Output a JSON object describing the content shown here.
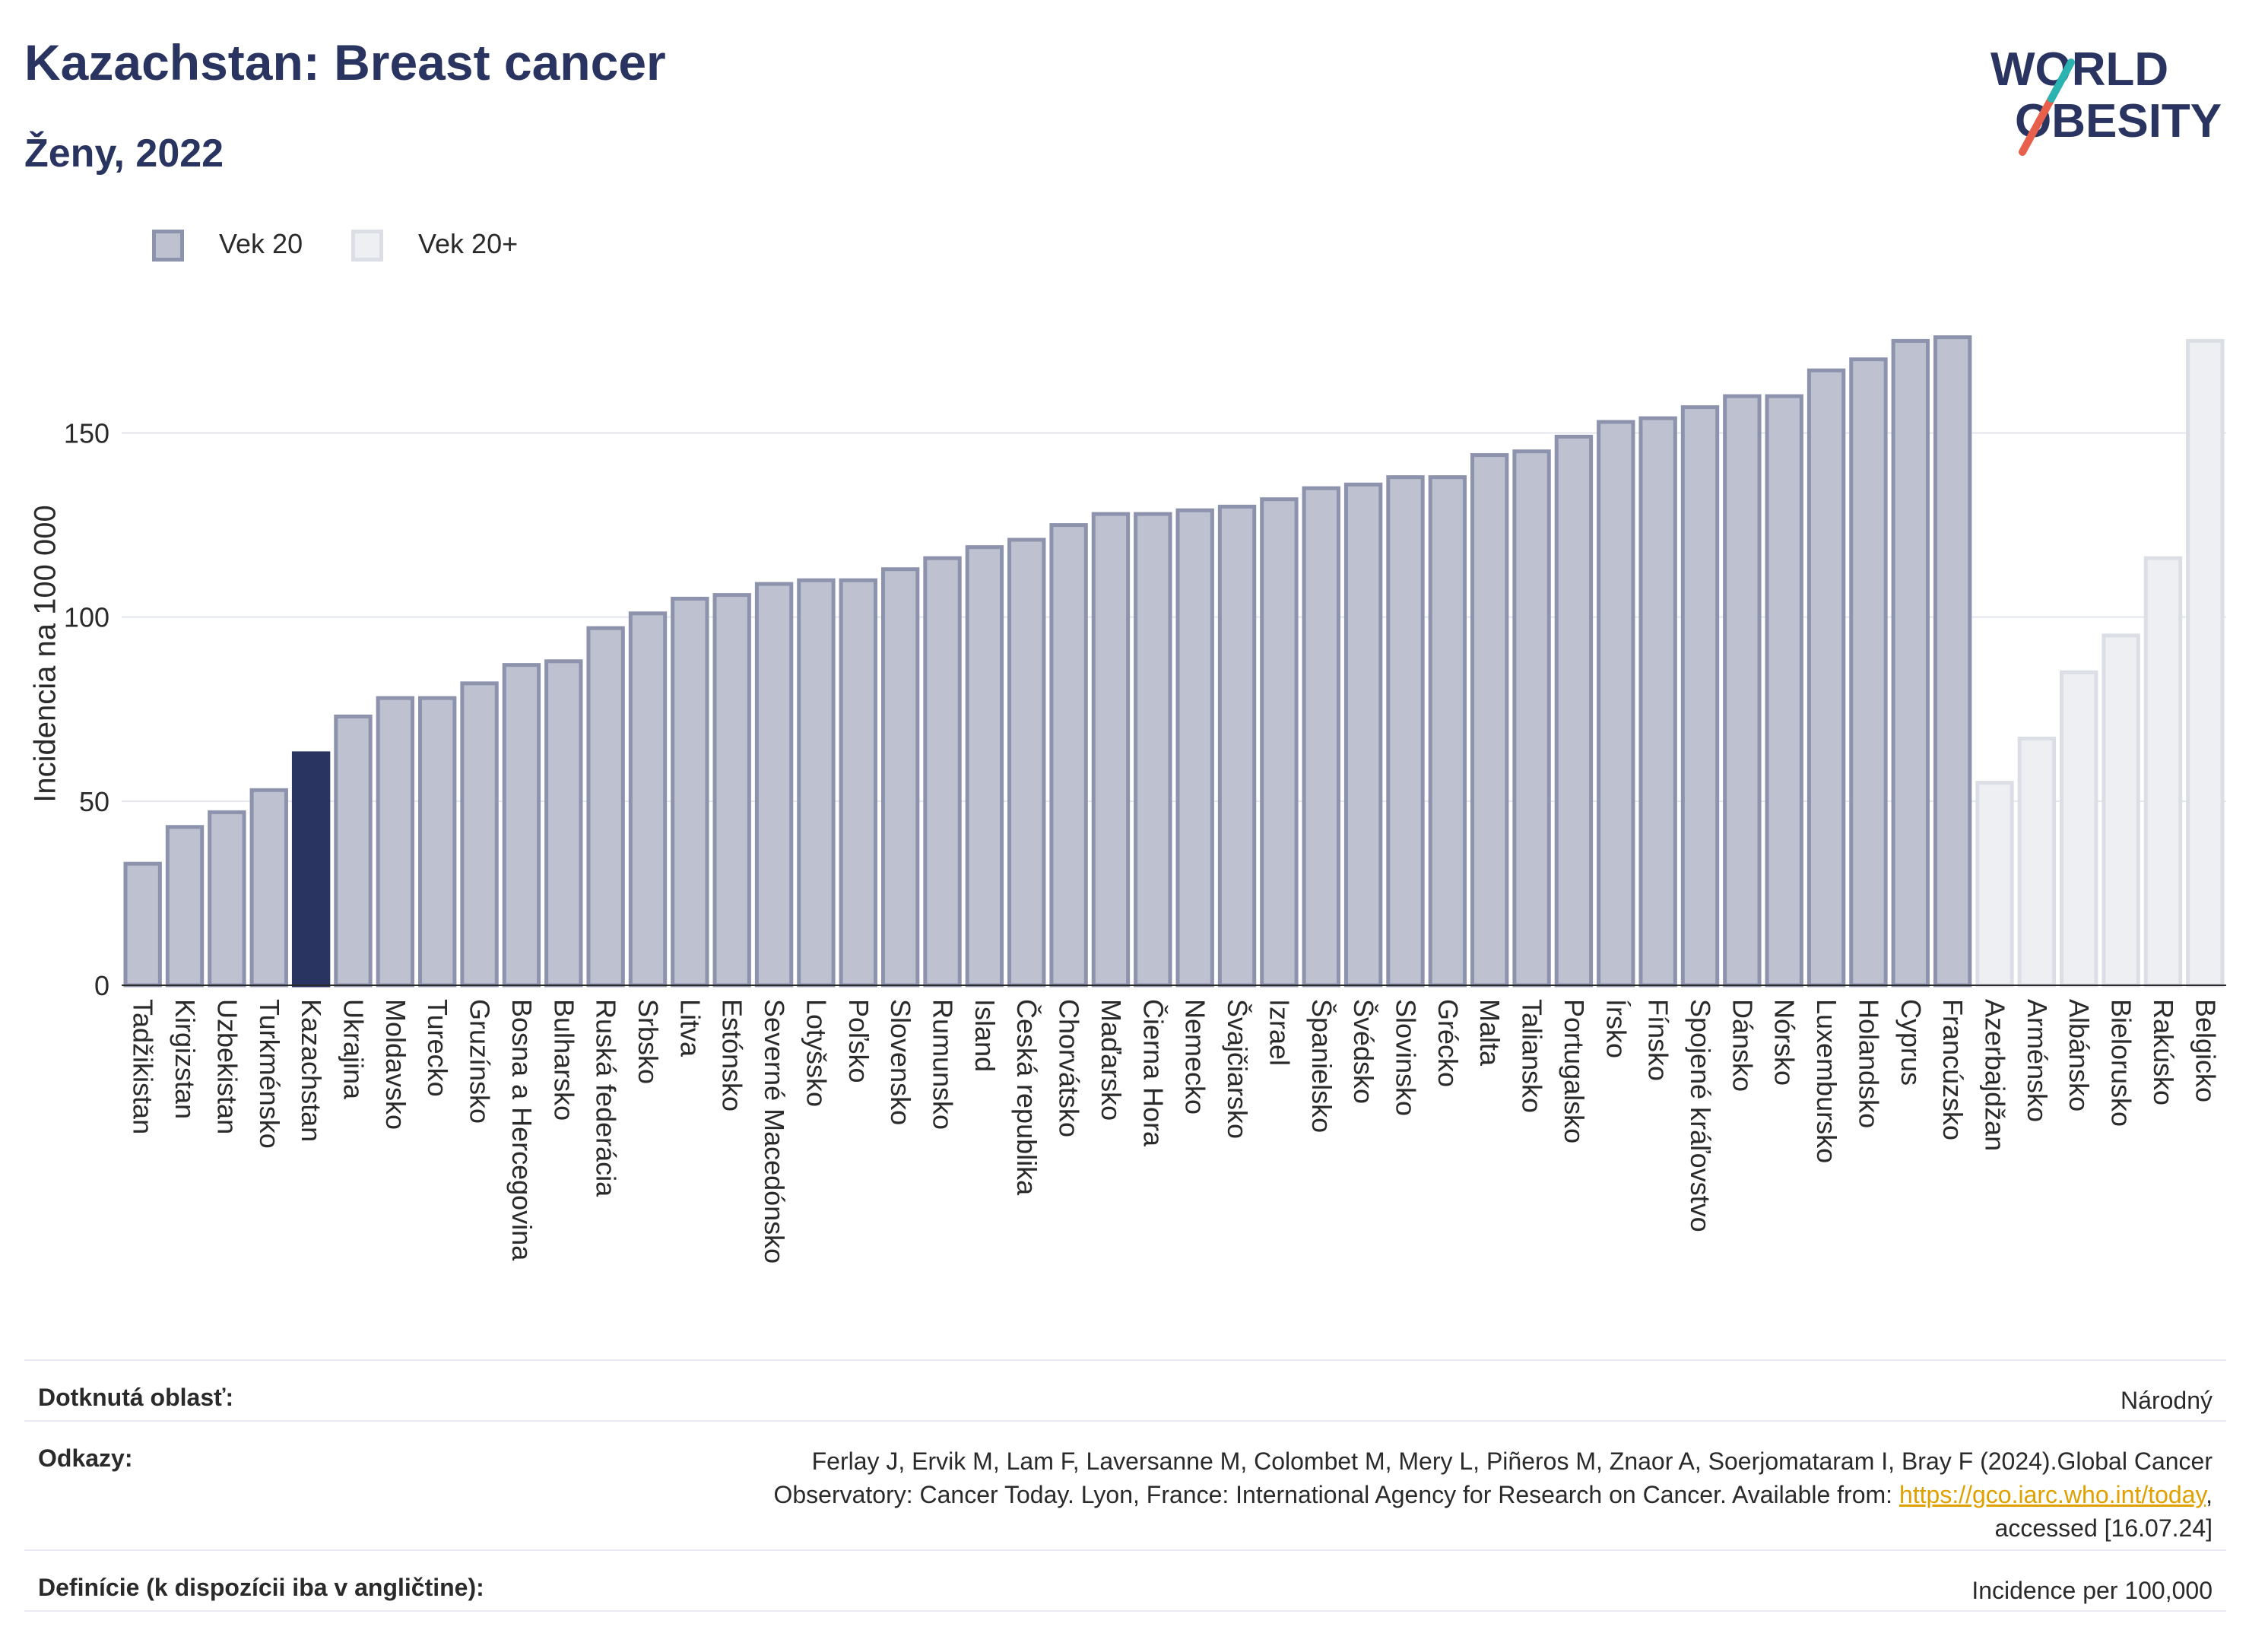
{
  "header": {
    "title": "Kazachstan: Breast cancer",
    "subtitle": "Ženy, 2022",
    "logo_text_line1": "WORLD",
    "logo_text_line2": "OBESITY"
  },
  "legend": [
    {
      "label": "Vek 20",
      "color": "#bdc1d0",
      "border": "#8d93ad"
    },
    {
      "label": "Vek 20+",
      "color": "#eeeff3",
      "border": "#dcdee6"
    }
  ],
  "colors": {
    "highlight": "#2a3460",
    "primary_bar": "#bdc1d0",
    "primary_border": "#8d93ad",
    "secondary_bar": "#eeeff3",
    "secondary_border": "#dcdee6",
    "grid": "#e4e6ee",
    "link": "#e0a100"
  },
  "chart_data": {
    "type": "bar",
    "ylabel": "Incidencia na 100 000",
    "ylim": [
      0,
      185
    ],
    "yticks": [
      0,
      50,
      100,
      150
    ],
    "grid": true,
    "highlight_category": "Kazachstan",
    "categories": [
      "Tadžikistan",
      "Kirgizstan",
      "Uzbekistan",
      "Turkménsko",
      "Kazachstan",
      "Ukrajina",
      "Moldavsko",
      "Turecko",
      "Gruzínsko",
      "Bosna a Hercegovina",
      "Bulharsko",
      "Ruská federácia",
      "Srbsko",
      "Litva",
      "Estónsko",
      "Severné Macedónsko",
      "Lotyšsko",
      "Poľsko",
      "Slovensko",
      "Rumunsko",
      "Island",
      "Česká republika",
      "Chorvátsko",
      "Maďarsko",
      "Čierna Hora",
      "Nemecko",
      "Švajčiarsko",
      "Izrael",
      "Španielsko",
      "Švédsko",
      "Slovinsko",
      "Grécko",
      "Malta",
      "Taliansko",
      "Portugalsko",
      "Írsko",
      "Fínsko",
      "Spojené kráľovstvo",
      "Dánsko",
      "Nórsko",
      "Luxembursko",
      "Holandsko",
      "Cyprus",
      "Francúzsko",
      "Azerbajdžan",
      "Arménsko",
      "Albánsko",
      "Bielorusko",
      "Rakúsko",
      "Belgicko"
    ],
    "series": [
      {
        "name": "Vek 20",
        "values": [
          33,
          43,
          47,
          53,
          63,
          73,
          78,
          78,
          82,
          87,
          88,
          97,
          101,
          105,
          106,
          109,
          110,
          110,
          113,
          116,
          119,
          121,
          125,
          128,
          128,
          129,
          130,
          132,
          135,
          136,
          138,
          138,
          144,
          145,
          149,
          153,
          154,
          157,
          160,
          160,
          167,
          170,
          175,
          176,
          null,
          null,
          null,
          null,
          null,
          null
        ]
      },
      {
        "name": "Vek 20+",
        "values": [
          null,
          null,
          null,
          null,
          null,
          null,
          null,
          null,
          null,
          null,
          null,
          null,
          null,
          null,
          null,
          null,
          null,
          null,
          null,
          null,
          null,
          null,
          null,
          null,
          null,
          null,
          null,
          null,
          null,
          null,
          null,
          null,
          null,
          null,
          null,
          null,
          null,
          null,
          null,
          null,
          null,
          null,
          null,
          null,
          55,
          67,
          85,
          95,
          116,
          175
        ]
      }
    ]
  },
  "info": {
    "area_label": "Dotknutá oblasť:",
    "area_value": "Národný",
    "refs_label": "Odkazy:",
    "refs_text_1": "Ferlay J, Ervik M, Lam F, Laversanne M, Colombet M, Mery L, Piñeros M, Znaor A, Soerjomataram I, Bray F (2024).Global Cancer",
    "refs_text_2": "Observatory: Cancer Today. Lyon, France: International Agency for Research on Cancer. Available from: ",
    "refs_link": "https://gco.iarc.who.int/today",
    "refs_text_3": ",",
    "refs_text_4": "accessed [16.07.24]",
    "def_label": "Definície (k dispozícii iba v angličtine):",
    "def_value": "Incidence per 100,000"
  }
}
